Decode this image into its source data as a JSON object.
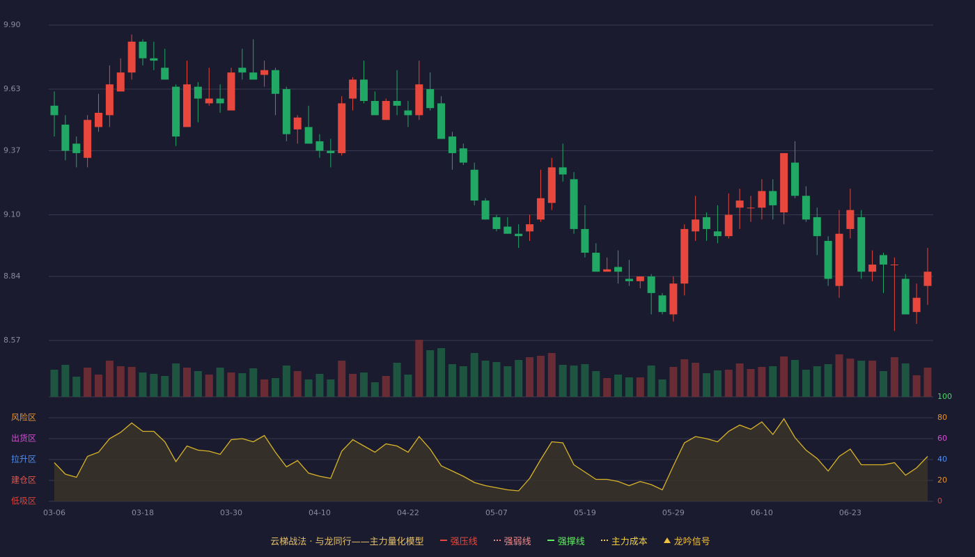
{
  "chart_data": {
    "type": "candlestick",
    "categories": [
      "03-06",
      null,
      null,
      null,
      null,
      null,
      null,
      null,
      "03-18",
      null,
      null,
      null,
      null,
      null,
      null,
      null,
      "03-30",
      null,
      null,
      null,
      null,
      null,
      null,
      null,
      "04-10",
      null,
      null,
      null,
      null,
      null,
      null,
      null,
      "04-22",
      null,
      null,
      null,
      null,
      null,
      null,
      null,
      "05-07",
      null,
      null,
      null,
      null,
      null,
      null,
      null,
      "05-19",
      null,
      null,
      null,
      null,
      null,
      null,
      null,
      "05-29",
      null,
      null,
      null,
      null,
      null,
      null,
      null,
      "06-10",
      null,
      null,
      null,
      null,
      null,
      null,
      null,
      "06-23",
      null,
      null,
      null,
      null,
      null,
      null,
      null
    ],
    "open": [
      9.56,
      9.48,
      9.4,
      9.34,
      9.47,
      9.52,
      9.62,
      9.7,
      9.83,
      9.76,
      9.72,
      9.64,
      9.47,
      9.64,
      9.57,
      9.59,
      9.54,
      9.72,
      9.7,
      9.69,
      9.71,
      9.63,
      9.46,
      9.47,
      9.41,
      9.37,
      9.36,
      9.59,
      9.67,
      9.58,
      9.5,
      9.58,
      9.54,
      9.52,
      9.63,
      9.57,
      9.43,
      9.38,
      9.29,
      9.16,
      9.09,
      9.05,
      9.02,
      9.03,
      9.08,
      9.15,
      9.3,
      9.25,
      9.04,
      8.94,
      8.86,
      8.88,
      8.83,
      8.82,
      8.84,
      8.76,
      8.68,
      8.81,
      9.03,
      9.09,
      9.03,
      9.01,
      9.13,
      9.13,
      9.13,
      9.2,
      9.11,
      9.32,
      9.18,
      9.09,
      8.99,
      8.8,
      9.04,
      9.09,
      8.86,
      8.93,
      8.89,
      8.83,
      8.69,
      8.8
    ],
    "high": [
      9.62,
      9.52,
      9.43,
      9.52,
      9.61,
      9.73,
      9.76,
      9.86,
      9.84,
      9.83,
      9.8,
      9.65,
      9.75,
      9.66,
      9.72,
      9.65,
      9.72,
      9.8,
      9.84,
      9.75,
      9.72,
      9.64,
      9.52,
      9.56,
      9.44,
      9.42,
      9.6,
      9.68,
      9.75,
      9.62,
      9.59,
      9.71,
      9.58,
      9.75,
      9.7,
      9.6,
      9.45,
      9.4,
      9.32,
      9.17,
      9.1,
      9.09,
      9.06,
      9.1,
      9.29,
      9.34,
      9.4,
      9.28,
      9.14,
      8.98,
      8.92,
      8.95,
      8.91,
      8.84,
      8.85,
      8.77,
      8.84,
      9.06,
      9.18,
      9.11,
      9.14,
      9.19,
      9.21,
      9.18,
      9.25,
      9.25,
      9.36,
      9.41,
      9.22,
      9.13,
      9.01,
      9.12,
      9.21,
      9.12,
      8.95,
      8.94,
      8.92,
      8.85,
      8.81,
      8.96
    ],
    "low": [
      9.43,
      9.33,
      9.3,
      9.3,
      9.45,
      9.47,
      9.62,
      9.67,
      9.73,
      9.71,
      9.67,
      9.39,
      9.47,
      9.49,
      9.56,
      9.53,
      9.54,
      9.67,
      9.67,
      9.64,
      9.52,
      9.41,
      9.4,
      9.4,
      9.34,
      9.3,
      9.35,
      9.54,
      9.57,
      9.52,
      9.5,
      9.52,
      9.47,
      9.5,
      9.54,
      9.42,
      9.29,
      9.31,
      9.14,
      9.08,
      9.03,
      9.02,
      8.96,
      8.99,
      9.07,
      9.12,
      9.24,
      9.02,
      8.92,
      8.86,
      8.86,
      8.81,
      8.8,
      8.79,
      8.68,
      8.68,
      8.65,
      8.76,
      8.99,
      8.99,
      8.98,
      9.0,
      9.04,
      9.07,
      9.08,
      9.08,
      9.06,
      9.17,
      9.07,
      8.93,
      8.8,
      8.75,
      9.0,
      8.83,
      8.82,
      8.77,
      8.61,
      8.68,
      8.64,
      8.72
    ],
    "close": [
      9.52,
      9.37,
      9.36,
      9.5,
      9.53,
      9.65,
      9.7,
      9.83,
      9.76,
      9.75,
      9.67,
      9.43,
      9.65,
      9.59,
      9.59,
      9.57,
      9.7,
      9.7,
      9.67,
      9.71,
      9.61,
      9.44,
      9.51,
      9.4,
      9.37,
      9.36,
      9.57,
      9.67,
      9.58,
      9.52,
      9.58,
      9.56,
      9.52,
      9.65,
      9.55,
      9.42,
      9.36,
      9.32,
      9.16,
      9.08,
      9.04,
      9.02,
      9.01,
      9.06,
      9.17,
      9.3,
      9.27,
      9.04,
      8.94,
      8.86,
      8.87,
      8.86,
      8.82,
      8.84,
      8.77,
      8.69,
      8.81,
      9.04,
      9.08,
      9.04,
      9.01,
      9.1,
      9.16,
      9.13,
      9.2,
      9.14,
      9.36,
      9.18,
      9.08,
      9.01,
      8.83,
      9.02,
      9.12,
      8.86,
      8.89,
      8.89,
      8.89,
      8.68,
      8.75,
      8.86
    ],
    "up_color": "#e8473d",
    "down_color": "#21a865",
    "ylim": [
      8.57,
      9.9
    ],
    "yticks": [
      8.57,
      8.84,
      {
        "value": 9.1,
        "label": "9.10"
      },
      9.37,
      9.63,
      {
        "value": 9.9,
        "label": "9.90"
      }
    ],
    "grid": true,
    "volume": {
      "values": [
        39,
        46,
        29,
        42,
        32,
        52,
        44,
        43,
        35,
        33,
        30,
        48,
        42,
        37,
        32,
        42,
        35,
        34,
        41,
        25,
        27,
        45,
        37,
        25,
        33,
        25,
        52,
        33,
        35,
        21,
        30,
        49,
        32,
        82,
        67,
        70,
        47,
        44,
        63,
        52,
        50,
        44,
        53,
        57,
        59,
        63,
        46,
        45,
        47,
        37,
        27,
        32,
        28,
        28,
        45,
        25,
        43,
        54,
        49,
        34,
        38,
        39,
        48,
        40,
        43,
        44,
        58,
        53,
        39,
        44,
        47,
        61,
        55,
        52,
        52,
        37,
        57,
        48,
        31,
        42
      ],
      "ylim": [
        0,
        82
      ],
      "up_color": "#6a2c34",
      "down_color": "#1d5541"
    },
    "indicator": {
      "values": [
        37,
        26,
        23,
        43,
        47,
        60,
        66,
        75,
        67,
        67,
        57,
        38,
        53,
        49,
        48,
        45,
        59,
        60,
        57,
        63,
        47,
        33,
        39,
        27,
        24,
        22,
        48,
        59,
        53,
        47,
        55,
        53,
        47,
        62,
        50,
        34,
        29,
        24,
        18,
        15,
        13,
        11,
        10,
        22,
        40,
        57,
        56,
        35,
        28,
        21,
        21,
        19,
        15,
        19,
        16,
        11,
        34,
        56,
        62,
        60,
        57,
        67,
        73,
        69,
        76,
        64,
        79,
        61,
        49,
        41,
        29,
        43,
        50,
        35,
        35,
        35,
        37,
        25,
        32,
        43
      ],
      "color": "#d9b429",
      "fill": "#3a3428",
      "ylim": [
        0,
        100
      ],
      "yticks": [
        0,
        20,
        40,
        60,
        80,
        100
      ],
      "ytick_colors": [
        "#e0403a",
        "#e8932b",
        "#4f8ff0",
        "#d84bd8",
        "#e8932b",
        "#4cd964"
      ],
      "zones": [
        {
          "label": "风险区",
          "value": 80,
          "color": "#e8932b"
        },
        {
          "label": "出货区",
          "value": 60,
          "color": "#d84bd8"
        },
        {
          "label": "拉升区",
          "value": 40,
          "color": "#4f8ff0"
        },
        {
          "label": "建仓区",
          "value": 20,
          "color": "#e8524a"
        },
        {
          "label": "低吸区",
          "value": 0,
          "color": "#e0403a"
        }
      ]
    },
    "legend": {
      "title": "云梯战法 · 与龙同行——主力量化模型",
      "title_color": "#e6c06a",
      "items": [
        {
          "name": "强压线",
          "color": "#e8473d",
          "marker": "solid"
        },
        {
          "name": "强弱线",
          "color": "#f08a8a",
          "marker": "dashed"
        },
        {
          "name": "强撑线",
          "color": "#5ef05e",
          "marker": "solid"
        },
        {
          "name": "主力成本",
          "color": "#f0d040",
          "marker": "dashed"
        },
        {
          "name": "龙吟信号",
          "color": "#f0c040",
          "marker": "triangle"
        }
      ]
    }
  }
}
